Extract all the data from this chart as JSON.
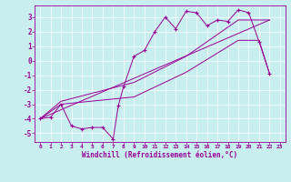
{
  "xlabel": "Windchill (Refroidissement éolien,°C)",
  "bg_color": "#c8eef0",
  "line_color": "#990099",
  "grid_color": "#ffffff",
  "xlim": [
    -0.5,
    23.5
  ],
  "ylim": [
    -5.6,
    3.8
  ],
  "xticks": [
    0,
    1,
    2,
    3,
    4,
    5,
    6,
    7,
    8,
    9,
    10,
    11,
    12,
    13,
    14,
    15,
    16,
    17,
    18,
    19,
    20,
    21,
    22,
    23
  ],
  "yticks": [
    -5,
    -4,
    -3,
    -2,
    -1,
    0,
    1,
    2,
    3
  ],
  "line1_x": [
    0,
    1,
    2,
    3,
    4,
    5,
    6,
    7,
    7.5,
    8,
    9,
    10,
    11,
    12,
    13,
    14,
    15,
    16,
    17,
    18,
    19,
    20,
    21,
    22
  ],
  "line1_y": [
    -4.0,
    -3.9,
    -3.0,
    -4.5,
    -4.7,
    -4.6,
    -4.6,
    -5.4,
    -3.1,
    -1.8,
    0.3,
    0.7,
    2.0,
    3.0,
    2.2,
    3.4,
    3.3,
    2.4,
    2.8,
    2.7,
    3.5,
    3.3,
    1.3,
    -0.9
  ],
  "line2_x": [
    0,
    2,
    9,
    14,
    19,
    21,
    22
  ],
  "line2_y": [
    -4.0,
    -3.0,
    -2.5,
    -0.8,
    1.4,
    1.4,
    -0.9
  ],
  "line3_x": [
    0,
    2,
    9,
    14,
    19,
    21,
    22
  ],
  "line3_y": [
    -4.0,
    -2.8,
    -1.5,
    0.3,
    2.8,
    2.8,
    2.8
  ],
  "line4_x": [
    0,
    22
  ],
  "line4_y": [
    -4.0,
    2.8
  ]
}
